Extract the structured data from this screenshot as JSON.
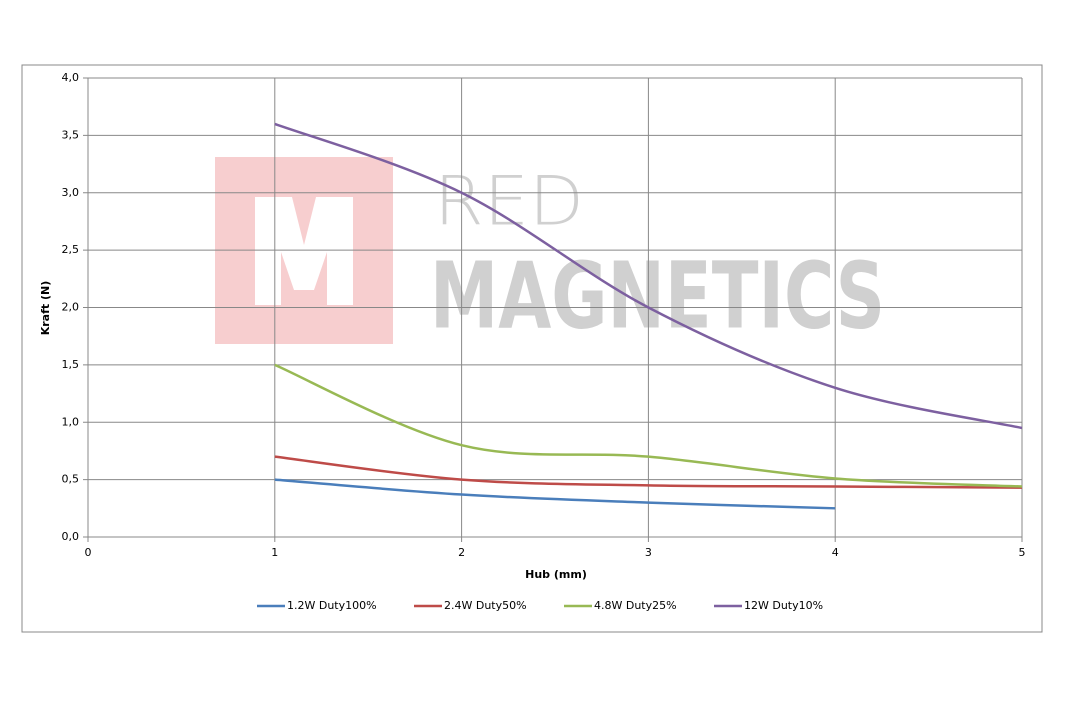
{
  "chart_data": {
    "type": "line",
    "x_label": "Hub (mm)",
    "y_label": "Kraft (N)",
    "watermark": {
      "brand_top": "RED",
      "brand_bottom": "MAGNETICS"
    },
    "x": [
      1,
      2,
      3,
      4,
      5
    ],
    "series": [
      {
        "name": "1.2W Duty100%",
        "color": "#4a7ebb",
        "values": [
          0.5,
          0.37,
          0.3,
          0.25,
          null
        ]
      },
      {
        "name": "2.4W Duty50%",
        "color": "#be4b48",
        "values": [
          0.7,
          0.5,
          0.45,
          0.44,
          0.43
        ]
      },
      {
        "name": "4.8W Duty25%",
        "color": "#98b954",
        "values": [
          1.5,
          0.8,
          0.7,
          0.51,
          0.44
        ]
      },
      {
        "name": "12W Duty10%",
        "color": "#7d60a0",
        "values": [
          3.6,
          3.0,
          2.0,
          1.3,
          0.95
        ]
      }
    ],
    "xlim": [
      0,
      5
    ],
    "xticks": [
      0,
      1,
      2,
      3,
      4,
      5
    ],
    "ylim": [
      0,
      4
    ],
    "yticks": [
      {
        "value": 0,
        "label": "0,0"
      },
      {
        "value": 0.5,
        "label": "0,5"
      },
      {
        "value": 1,
        "label": "1,0"
      },
      {
        "value": 1.5,
        "label": "1,5"
      },
      {
        "value": 2,
        "label": "2,0"
      },
      {
        "value": 2.5,
        "label": "2,5"
      },
      {
        "value": 3,
        "label": "3,0"
      },
      {
        "value": 3.5,
        "label": "3,5"
      },
      {
        "value": 4,
        "label": "4,0"
      }
    ],
    "grid": true,
    "legend": "bottom"
  }
}
